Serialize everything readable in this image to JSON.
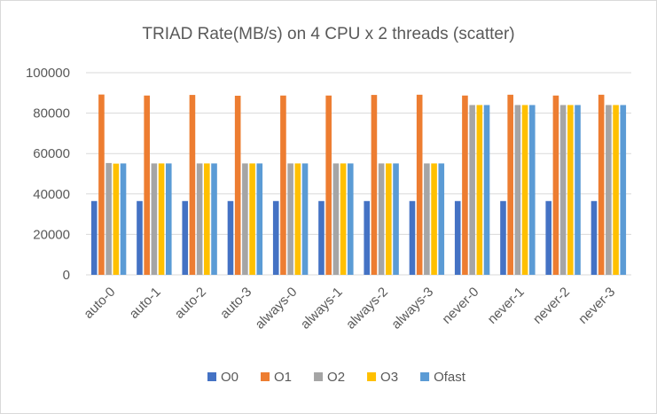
{
  "chart_data": {
    "type": "bar",
    "title": "TRIAD Rate(MB/s) on 4 CPU x 2 threads (scatter)",
    "xlabel": "",
    "ylabel": "",
    "ylim": [
      0,
      100000
    ],
    "yticks": [
      "0",
      "20000",
      "40000",
      "60000",
      "80000",
      "100000"
    ],
    "ytick_values": [
      0,
      20000,
      40000,
      60000,
      80000,
      100000
    ],
    "grid": true,
    "legend_position": "bottom",
    "categories": [
      "auto-0",
      "auto-1",
      "auto-2",
      "auto-3",
      "always-0",
      "always-1",
      "always-2",
      "always-3",
      "never-0",
      "never-1",
      "never-2",
      "never-3"
    ],
    "series": [
      {
        "name": "O0",
        "color": "#4472c4",
        "values": [
          36500,
          36500,
          36500,
          36500,
          36500,
          36500,
          36500,
          36500,
          36500,
          36500,
          36500,
          36500
        ]
      },
      {
        "name": "O1",
        "color": "#ed7d31",
        "values": [
          89200,
          88700,
          89000,
          88600,
          88700,
          88700,
          89000,
          89100,
          88700,
          89100,
          88700,
          89100
        ]
      },
      {
        "name": "O2",
        "color": "#a5a5a5",
        "values": [
          55300,
          55100,
          55100,
          55100,
          55100,
          55100,
          55100,
          55100,
          84000,
          84000,
          84000,
          84000
        ]
      },
      {
        "name": "O3",
        "color": "#ffc000",
        "values": [
          55000,
          55100,
          55100,
          55100,
          55100,
          55100,
          55100,
          55100,
          84000,
          84000,
          84000,
          84000
        ]
      },
      {
        "name": "Ofast",
        "color": "#5b9bd5",
        "values": [
          55100,
          55100,
          55100,
          55100,
          55100,
          55100,
          55100,
          55100,
          84000,
          84000,
          84000,
          84000
        ]
      }
    ]
  }
}
